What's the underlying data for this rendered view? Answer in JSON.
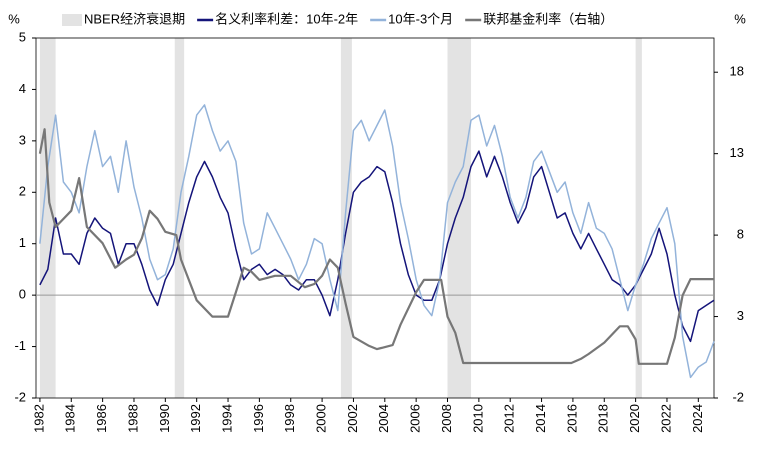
{
  "chart_data": {
    "type": "line",
    "ylabel": "%",
    "y2label": "%",
    "shaded_periods": {
      "name": "NBER经济衰退期",
      "color": "#e3e3e3",
      "ranges": [
        [
          1982.0,
          1983.0
        ],
        [
          1990.6,
          1991.2
        ],
        [
          2001.2,
          2001.9
        ],
        [
          2008.0,
          2009.5
        ],
        [
          2020.0,
          2020.4
        ]
      ]
    },
    "series": [
      {
        "name": "名义利率利差：10年-2年",
        "color": "#14147a",
        "axis": "y",
        "x": [
          1982,
          1982.5,
          1983,
          1983.5,
          1984,
          1984.5,
          1985,
          1985.5,
          1986,
          1986.5,
          1987,
          1987.5,
          1988,
          1988.5,
          1989,
          1989.5,
          1990,
          1990.5,
          1991,
          1991.5,
          1992,
          1992.5,
          1993,
          1993.5,
          1994,
          1994.5,
          1995,
          1995.5,
          1996,
          1996.5,
          1997,
          1997.5,
          1998,
          1998.5,
          1999,
          1999.5,
          2000,
          2000.5,
          2001,
          2001.5,
          2002,
          2002.5,
          2003,
          2003.5,
          2004,
          2004.5,
          2005,
          2005.5,
          2006,
          2006.5,
          2007,
          2007.5,
          2008,
          2008.5,
          2009,
          2009.5,
          2010,
          2010.5,
          2011,
          2011.5,
          2012,
          2012.5,
          2013,
          2013.5,
          2014,
          2014.5,
          2015,
          2015.5,
          2016,
          2016.5,
          2017,
          2017.5,
          2018,
          2018.5,
          2019,
          2019.5,
          2020,
          2020.5,
          2021,
          2021.5,
          2022,
          2022.5,
          2023,
          2023.5,
          2024,
          2024.5,
          2025
        ],
        "values": [
          0.2,
          0.5,
          1.5,
          0.8,
          0.8,
          0.6,
          1.2,
          1.5,
          1.3,
          1.2,
          0.6,
          1.0,
          1.0,
          0.6,
          0.1,
          -0.2,
          0.3,
          0.6,
          1.2,
          1.8,
          2.3,
          2.6,
          2.3,
          1.9,
          1.6,
          0.9,
          0.3,
          0.5,
          0.6,
          0.4,
          0.5,
          0.4,
          0.2,
          0.1,
          0.3,
          0.3,
          0.0,
          -0.4,
          0.3,
          1.2,
          2.0,
          2.2,
          2.3,
          2.5,
          2.4,
          1.8,
          1.0,
          0.4,
          0.0,
          -0.1,
          -0.1,
          0.3,
          1.0,
          1.5,
          1.9,
          2.5,
          2.8,
          2.3,
          2.7,
          2.3,
          1.8,
          1.4,
          1.7,
          2.3,
          2.5,
          2.0,
          1.5,
          1.6,
          1.2,
          0.9,
          1.2,
          0.9,
          0.6,
          0.3,
          0.2,
          0.0,
          0.2,
          0.5,
          0.8,
          1.3,
          0.8,
          0.0,
          -0.6,
          -0.9,
          -0.3,
          -0.2,
          -0.1
        ]
      },
      {
        "name": "10年-3个月",
        "color": "#93b3da",
        "axis": "y",
        "x": [
          1982,
          1982.5,
          1983,
          1983.5,
          1984,
          1984.5,
          1985,
          1985.5,
          1986,
          1986.5,
          1987,
          1987.5,
          1988,
          1988.5,
          1989,
          1989.5,
          1990,
          1990.5,
          1991,
          1991.5,
          1992,
          1992.5,
          1993,
          1993.5,
          1994,
          1994.5,
          1995,
          1995.5,
          1996,
          1996.5,
          1997,
          1997.5,
          1998,
          1998.5,
          1999,
          1999.5,
          2000,
          2000.5,
          2001,
          2001.5,
          2002,
          2002.5,
          2003,
          2003.5,
          2004,
          2004.5,
          2005,
          2005.5,
          2006,
          2006.5,
          2007,
          2007.5,
          2008,
          2008.5,
          2009,
          2009.5,
          2010,
          2010.5,
          2011,
          2011.5,
          2012,
          2012.5,
          2013,
          2013.5,
          2014,
          2014.5,
          2015,
          2015.5,
          2016,
          2016.5,
          2017,
          2017.5,
          2018,
          2018.5,
          2019,
          2019.5,
          2020,
          2020.5,
          2021,
          2021.5,
          2022,
          2022.5,
          2023,
          2023.5,
          2024,
          2024.5,
          2025
        ],
        "values": [
          1.0,
          2.5,
          3.5,
          2.2,
          2.0,
          1.6,
          2.5,
          3.2,
          2.5,
          2.7,
          2.0,
          3.0,
          2.1,
          1.5,
          0.7,
          0.3,
          0.4,
          0.9,
          2.0,
          2.7,
          3.5,
          3.7,
          3.2,
          2.8,
          3.0,
          2.6,
          1.4,
          0.8,
          0.9,
          1.6,
          1.3,
          1.0,
          0.7,
          0.3,
          0.6,
          1.1,
          1.0,
          0.3,
          -0.3,
          1.6,
          3.2,
          3.4,
          3.0,
          3.3,
          3.6,
          2.9,
          1.8,
          1.1,
          0.3,
          -0.2,
          -0.4,
          0.3,
          1.8,
          2.2,
          2.5,
          3.4,
          3.5,
          2.9,
          3.3,
          2.7,
          1.9,
          1.5,
          1.9,
          2.6,
          2.8,
          2.4,
          2.0,
          2.2,
          1.6,
          1.2,
          1.8,
          1.3,
          1.2,
          0.9,
          0.3,
          -0.3,
          0.2,
          0.6,
          1.1,
          1.4,
          1.7,
          1.0,
          -0.8,
          -1.6,
          -1.4,
          -1.3,
          -0.9
        ]
      },
      {
        "name": "联邦基金利率（右轴）",
        "color": "#777777",
        "axis": "y2",
        "x": [
          1982,
          1982.3,
          1982.6,
          1983,
          1984,
          1984.5,
          1985,
          1986,
          1986.8,
          1987.5,
          1988,
          1988.5,
          1989,
          1989.5,
          1990,
          1990.7,
          1991,
          1992,
          1993,
          1994,
          1994.5,
          1995,
          1995.5,
          1996,
          1997,
          1998,
          1998.9,
          1999.5,
          2000,
          2000.5,
          2001,
          2001.5,
          2002,
          2003,
          2003.5,
          2004.5,
          2005,
          2006,
          2006.5,
          2007.6,
          2008,
          2008.5,
          2009,
          2015.9,
          2016.5,
          2017,
          2018,
          2019,
          2019.5,
          2020,
          2020.2,
          2022,
          2022.5,
          2023,
          2023.5,
          2025
        ],
        "values": [
          13,
          14.5,
          10,
          8.5,
          9.5,
          11.5,
          8.5,
          7.5,
          6,
          6.5,
          6.8,
          7.8,
          9.5,
          9,
          8.2,
          8,
          6.5,
          4,
          3,
          3,
          4.5,
          6,
          5.75,
          5.25,
          5.5,
          5.5,
          4.8,
          5,
          5.5,
          6.5,
          6,
          3.8,
          1.75,
          1.2,
          1,
          1.25,
          2.5,
          4.5,
          5.25,
          5.25,
          3,
          2,
          0.15,
          0.15,
          0.4,
          0.7,
          1.4,
          2.4,
          2.4,
          1.6,
          0.1,
          0.1,
          1.7,
          4.3,
          5.3,
          5.3
        ]
      }
    ],
    "xlim": [
      1981.75,
      2025
    ],
    "xticks": [
      1982,
      1984,
      1986,
      1988,
      1990,
      1992,
      1994,
      1996,
      1998,
      2000,
      2002,
      2004,
      2006,
      2008,
      2010,
      2012,
      2014,
      2016,
      2018,
      2020,
      2022,
      2024
    ],
    "ylim": [
      -2,
      5
    ],
    "yticks": [
      -2,
      -1,
      0,
      1,
      2,
      3,
      4,
      5
    ],
    "y2lim": [
      -2,
      20.1
    ],
    "y2ticks": [
      -2,
      3,
      8,
      13,
      18
    ],
    "negative_tick_color": "#e00000",
    "zero_line": true,
    "legend": "top"
  }
}
